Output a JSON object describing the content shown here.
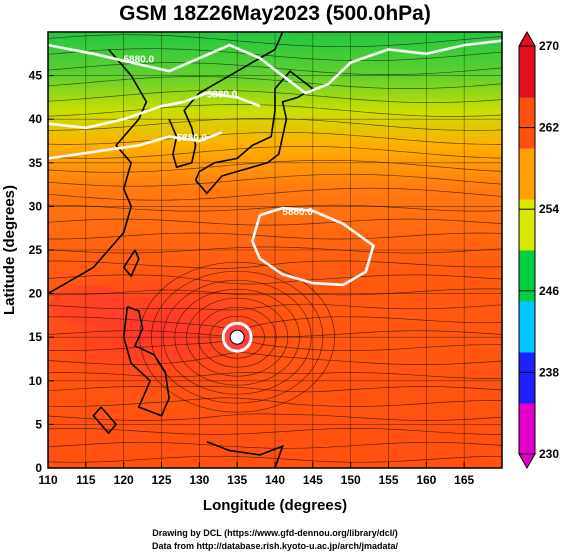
{
  "chart_data": {
    "type": "heatmap",
    "title": "GSM 18Z26May2023 (500.0hPa)",
    "xlabel": "Longitude (degrees)",
    "ylabel": "Latitude (degrees)",
    "xlim": [
      110,
      170
    ],
    "ylim": [
      0,
      50
    ],
    "x_ticks": [
      110,
      115,
      120,
      125,
      130,
      135,
      140,
      145,
      150,
      155,
      160,
      165
    ],
    "y_ticks": [
      0,
      5,
      10,
      15,
      20,
      25,
      30,
      35,
      40,
      45
    ],
    "colorbar": {
      "min": 230,
      "max": 270,
      "ticks": [
        230,
        238,
        246,
        254,
        262,
        270
      ],
      "colors": [
        "#e000c8",
        "#2020ff",
        "#00c8ff",
        "#00d040",
        "#d8e800",
        "#ffa000",
        "#ff5010",
        "#e01020"
      ]
    },
    "contour_labels": [
      {
        "text": "5880.0",
        "lon": 122,
        "lat": 46.5
      },
      {
        "text": "5880.0",
        "lon": 133,
        "lat": 42.5
      },
      {
        "text": "5880.0",
        "lon": 129,
        "lat": 37.5
      },
      {
        "text": "5880.0",
        "lon": 143,
        "lat": 29
      }
    ],
    "features": {
      "typhoon_center": {
        "lon": 135,
        "lat": 15
      }
    }
  },
  "credits": {
    "line1": "Drawing by DCL (https://www.gfd-dennou.org/library/dcl/)",
    "line2": "Data from http://database.rish.kyoto-u.ac.jp/arch/jmadata/"
  }
}
